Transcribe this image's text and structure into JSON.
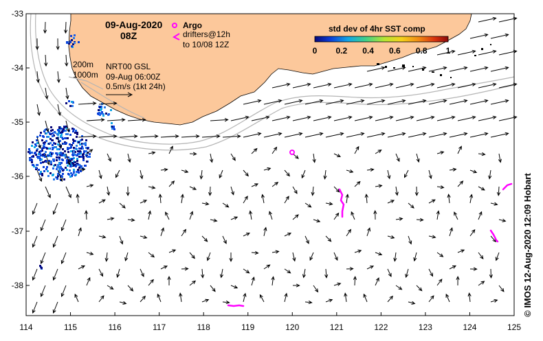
{
  "map": {
    "date_label": "09-Aug-2020",
    "time_label": "08Z",
    "legend": {
      "argo_label": "Argo",
      "drifters_line1": "drifters@12h",
      "drifters_line2": "to 10/08 12Z"
    },
    "colorbar": {
      "title": "std dev of 4hr SST comp",
      "ticks": [
        "0",
        "0.2",
        "0.4",
        "0.6",
        "0.8",
        "1"
      ],
      "colors": [
        "#08087a",
        "#0a3fd9",
        "#11a6e6",
        "#3fd08a",
        "#b4e634",
        "#f5d21a",
        "#f28a13",
        "#d8320e",
        "#8a0a0a"
      ]
    },
    "info": {
      "contour_200": "200m",
      "contour_1000": "1000m",
      "product": "NRT00 GSL",
      "product_time": "09-Aug 06:00Z",
      "scale_label": "0.5m/s (1kt 24h)"
    },
    "credit": "© IMOS 12-Aug-2020 12:09 Hobart",
    "lat_ticks": [
      "-33",
      "-34",
      "-35",
      "-36",
      "-37",
      "-38"
    ],
    "lon_ticks": [
      "114",
      "115",
      "116",
      "117",
      "118",
      "119",
      "120",
      "121",
      "122",
      "123",
      "124",
      "125"
    ],
    "colors": {
      "land": "#fcc89b",
      "argo": "#ff00ff",
      "drifter": "#ff00ff",
      "contour": "#b4b4b4",
      "arrow": "#000000"
    }
  }
}
